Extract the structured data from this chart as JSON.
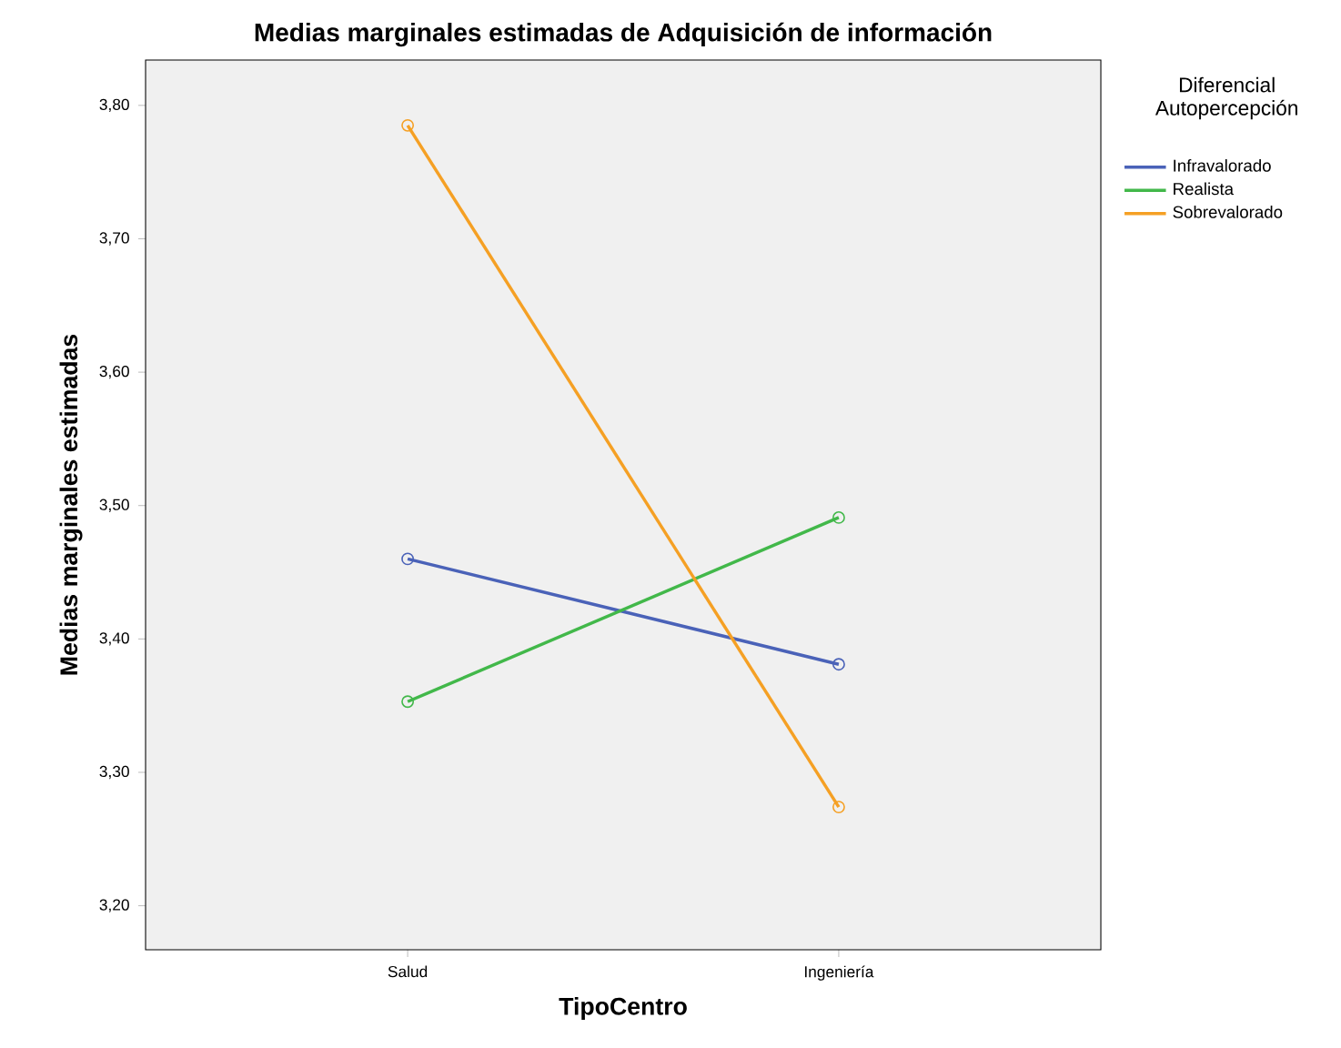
{
  "chart_data": {
    "type": "line",
    "title": "Medias marginales estimadas de Adquisición de información",
    "xlabel": "TipoCentro",
    "ylabel": "Medias marginales estimadas",
    "legend_title": "Diferencial Autopercepción",
    "categories": [
      "Salud",
      "Ingeniería"
    ],
    "series": [
      {
        "name": "Infravalorado",
        "color": "#4a62b8",
        "values": [
          3.46,
          3.381
        ]
      },
      {
        "name": "Realista",
        "color": "#42b84a",
        "values": [
          3.353,
          3.491
        ]
      },
      {
        "name": "Sobrevalorado",
        "color": "#f5a024",
        "values": [
          3.785,
          3.274
        ]
      }
    ],
    "ylim": [
      3.167,
      3.834
    ],
    "yticks": [
      {
        "value": 3.2,
        "label": "3,20"
      },
      {
        "value": 3.3,
        "label": "3,30"
      },
      {
        "value": 3.4,
        "label": "3,40"
      },
      {
        "value": 3.5,
        "label": "3,50"
      },
      {
        "value": 3.6,
        "label": "3,60"
      },
      {
        "value": 3.7,
        "label": "3,70"
      },
      {
        "value": 3.8,
        "label": "3,80"
      }
    ],
    "grid": false,
    "legend": "right",
    "marker": "circle",
    "line_style": "solid"
  }
}
